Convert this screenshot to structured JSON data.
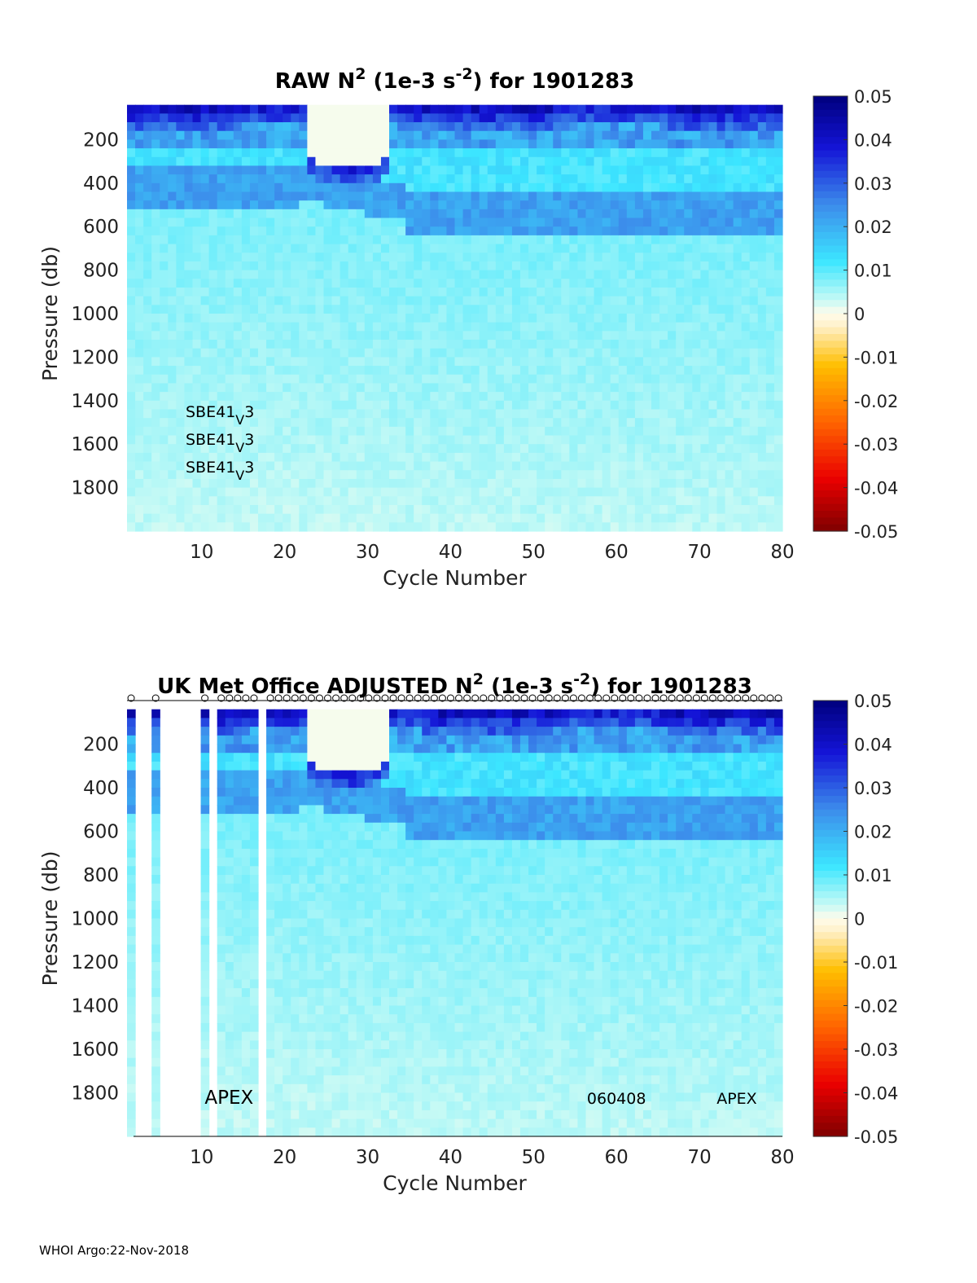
{
  "footer": "WHOI Argo:22-Nov-2018",
  "chart_data": [
    {
      "type": "heatmap",
      "title": "RAW N² (1e-3 s⁻²) for 1901283",
      "title_parts": {
        "prefix": "RAW N",
        "sup1": "2",
        "mid": " (1e-3 s",
        "sup2": "-2",
        "suffix": ") for 1901283"
      },
      "xlabel": "Cycle Number",
      "ylabel": "Pressure (db)",
      "xlim": [
        1,
        80
      ],
      "ylim": [
        2000,
        0
      ],
      "x_ticks": [
        10,
        20,
        30,
        40,
        50,
        60,
        70,
        80
      ],
      "y_ticks": [
        200,
        400,
        600,
        800,
        1000,
        1200,
        1400,
        1600,
        1800
      ],
      "color_range": [
        -0.05,
        0.05
      ],
      "colorbar_ticks": [
        "0.05",
        "0.04",
        "0.03",
        "0.02",
        "0.01",
        "0",
        "-0.01",
        "-0.02",
        "-0.03",
        "-0.04",
        "-0.05"
      ],
      "annotations": [
        {
          "base": "SBE41",
          "sub": "V",
          "tail": "3"
        },
        {
          "base": "SBE41",
          "sub": "V",
          "tail": "3"
        },
        {
          "base": "SBE41",
          "sub": "V",
          "tail": "3"
        }
      ],
      "missing_cycles": [],
      "profile_markers": false,
      "features": {
        "surface_layer_max_n2": 0.045,
        "pycnocline_upper_db": 430,
        "pycnocline_lower_db": 600,
        "deep_n2": 0.008
      }
    },
    {
      "type": "heatmap",
      "title": "UK Met Office ADJUSTED N² (1e-3 s⁻²) for 1901283",
      "title_parts": {
        "prefix": "UK Met Office  ADJUSTED N",
        "sup1": "2",
        "mid": " (1e-3 s",
        "sup2": "-2",
        "suffix": ") for 1901283"
      },
      "xlabel": "Cycle Number",
      "ylabel": "Pressure (db)",
      "xlim": [
        1,
        80
      ],
      "ylim": [
        2000,
        0
      ],
      "x_ticks": [
        10,
        20,
        30,
        40,
        50,
        60,
        70,
        80
      ],
      "y_ticks": [
        200,
        400,
        600,
        800,
        1000,
        1200,
        1400,
        1600,
        1800
      ],
      "color_range": [
        -0.05,
        0.05
      ],
      "colorbar_ticks": [
        "0.05",
        "0.04",
        "0.03",
        "0.02",
        "0.01",
        "0",
        "-0.01",
        "-0.02",
        "-0.03",
        "-0.04",
        "-0.05"
      ],
      "annotations": [
        {
          "label": "APEX",
          "x": 13.3,
          "y": 1820
        },
        {
          "label": "060408",
          "x": 60,
          "y": 1820
        },
        {
          "label": "APEX",
          "x": 74.5,
          "y": 1820
        }
      ],
      "missing_cycles": [
        2,
        3,
        5,
        6,
        7,
        8,
        9,
        11,
        17
      ],
      "profile_markers": true,
      "marker_symbol": "o",
      "features": {
        "surface_layer_max_n2": 0.045,
        "pycnocline_upper_db": 430,
        "pycnocline_lower_db": 600,
        "deep_n2": 0.008
      }
    }
  ]
}
